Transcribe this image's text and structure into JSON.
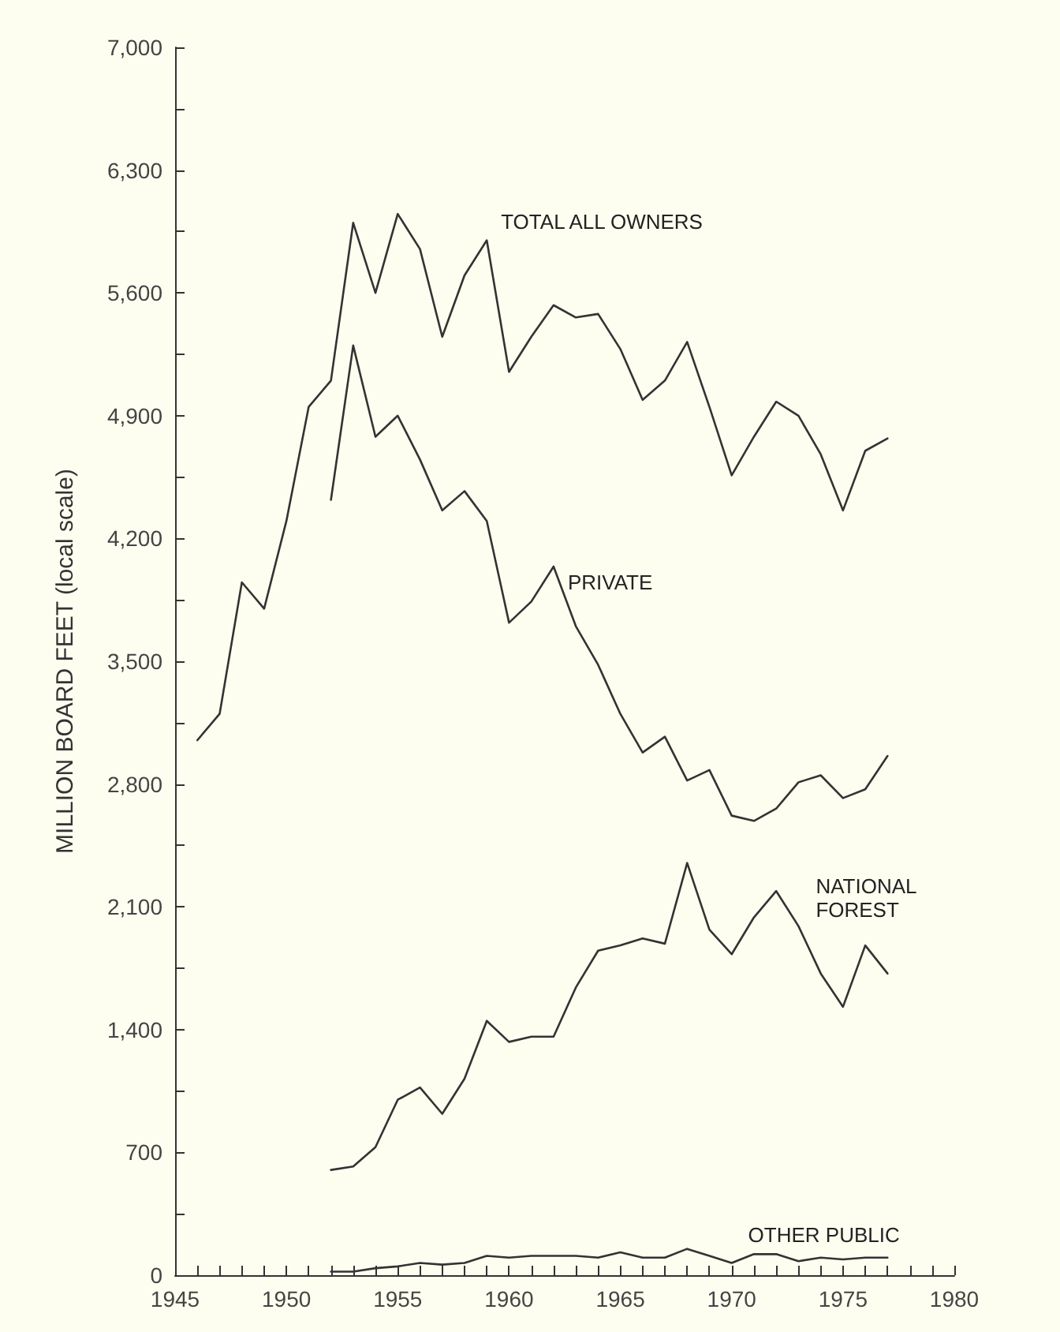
{
  "chart_data": {
    "type": "line",
    "ylabel": "MILLION BOARD FEET (local scale)",
    "xlim": [
      1945,
      1980
    ],
    "xticks": [
      {
        "value": 1945,
        "label": "1945"
      },
      {
        "value": 1946,
        "label": null
      },
      {
        "value": 1947,
        "label": null
      },
      {
        "value": 1948,
        "label": null
      },
      {
        "value": 1949,
        "label": null
      },
      {
        "value": 1950,
        "label": "1950"
      },
      {
        "value": 1951,
        "label": null
      },
      {
        "value": 1952,
        "label": null
      },
      {
        "value": 1953,
        "label": null
      },
      {
        "value": 1954,
        "label": null
      },
      {
        "value": 1955,
        "label": "1955"
      },
      {
        "value": 1956,
        "label": null
      },
      {
        "value": 1957,
        "label": null
      },
      {
        "value": 1958,
        "label": null
      },
      {
        "value": 1959,
        "label": null
      },
      {
        "value": 1960,
        "label": "1960"
      },
      {
        "value": 1961,
        "label": null
      },
      {
        "value": 1962,
        "label": null
      },
      {
        "value": 1963,
        "label": null
      },
      {
        "value": 1964,
        "label": null
      },
      {
        "value": 1965,
        "label": "1965"
      },
      {
        "value": 1966,
        "label": null
      },
      {
        "value": 1967,
        "label": null
      },
      {
        "value": 1968,
        "label": null
      },
      {
        "value": 1969,
        "label": null
      },
      {
        "value": 1970,
        "label": "1970"
      },
      {
        "value": 1971,
        "label": null
      },
      {
        "value": 1972,
        "label": null
      },
      {
        "value": 1973,
        "label": null
      },
      {
        "value": 1974,
        "label": null
      },
      {
        "value": 1975,
        "label": "1975"
      },
      {
        "value": 1976,
        "label": null
      },
      {
        "value": 1977,
        "label": null
      },
      {
        "value": 1978,
        "label": null
      },
      {
        "value": 1979,
        "label": null
      },
      {
        "value": 1980,
        "label": "1980"
      }
    ],
    "ylim": [
      0,
      7000
    ],
    "yticks": [
      0,
      {
        "value": 350,
        "label": null
      },
      {
        "value": 700,
        "label": "700"
      },
      {
        "value": 1050,
        "label": null
      },
      {
        "value": 1400,
        "label": "1,400"
      },
      {
        "value": 1750,
        "label": null
      },
      {
        "value": 2100,
        "label": "2,100"
      },
      {
        "value": 2450,
        "label": null
      },
      {
        "value": 2800,
        "label": "2,800"
      },
      {
        "value": 3150,
        "label": null
      },
      {
        "value": 3500,
        "label": "3,500"
      },
      {
        "value": 3850,
        "label": null
      },
      {
        "value": 4200,
        "label": "4,200"
      },
      {
        "value": 4550,
        "label": null
      },
      {
        "value": 4900,
        "label": "4,900"
      },
      {
        "value": 5250,
        "label": null
      },
      {
        "value": 5600,
        "label": "5,600"
      },
      {
        "value": 5950,
        "label": null
      },
      {
        "value": 6300,
        "label": "6,300"
      },
      {
        "value": 6650,
        "label": null
      },
      {
        "value": 7000,
        "label": "7,000"
      }
    ],
    "grid": false,
    "legend": false,
    "marker": "none",
    "line_style": "solid",
    "series": [
      {
        "name": "TOTAL ALL OWNERS",
        "color": "#333333",
        "x": [
          1946,
          1947,
          1948,
          1949,
          1950,
          1951,
          1952,
          1953,
          1954,
          1955,
          1956,
          1957,
          1958,
          1959,
          1960,
          1961,
          1962,
          1963,
          1964,
          1965,
          1966,
          1967,
          1968,
          1969,
          1970,
          1971,
          1972,
          1973,
          1974,
          1975,
          1976,
          1977
        ],
        "values": [
          3050,
          3200,
          3950,
          3800,
          4300,
          4950,
          5100,
          6000,
          5600,
          6050,
          5850,
          5350,
          5700,
          5900,
          5150,
          5350,
          5530,
          5460,
          5480,
          5280,
          4990,
          5100,
          5320,
          4950,
          4560,
          4780,
          4980,
          4900,
          4680,
          4360,
          4700,
          4770
        ]
      },
      {
        "name": "PRIVATE",
        "color": "#333333",
        "x": [
          1952,
          1953,
          1954,
          1955,
          1956,
          1957,
          1958,
          1959,
          1960,
          1961,
          1962,
          1963,
          1964,
          1965,
          1966,
          1967,
          1968,
          1969,
          1970,
          1971,
          1972,
          1973,
          1974,
          1975,
          1976,
          1977
        ],
        "values": [
          4420,
          5300,
          4780,
          4900,
          4650,
          4360,
          4470,
          4300,
          3720,
          3840,
          4040,
          3700,
          3480,
          3200,
          2980,
          3070,
          2820,
          2880,
          2620,
          2590,
          2660,
          2810,
          2850,
          2720,
          2770,
          2960
        ]
      },
      {
        "name": "NATIONAL FOREST",
        "color": "#333333",
        "x": [
          1952,
          1953,
          1954,
          1955,
          1956,
          1957,
          1958,
          1959,
          1960,
          1961,
          1962,
          1963,
          1964,
          1965,
          1966,
          1967,
          1968,
          1969,
          1970,
          1971,
          1972,
          1973,
          1974,
          1975,
          1976,
          1977
        ],
        "values": [
          600,
          620,
          730,
          1000,
          1070,
          920,
          1120,
          1450,
          1330,
          1360,
          1360,
          1640,
          1850,
          1880,
          1920,
          1890,
          2350,
          1970,
          1830,
          2040,
          2190,
          1990,
          1720,
          1530,
          1880,
          1720
        ]
      },
      {
        "name": "OTHER PUBLIC",
        "color": "#333333",
        "x": [
          1952,
          1953,
          1954,
          1955,
          1956,
          1957,
          1958,
          1959,
          1960,
          1961,
          1962,
          1963,
          1964,
          1965,
          1966,
          1967,
          1968,
          1969,
          1970,
          1971,
          1972,
          1973,
          1974,
          1975,
          1976,
          1977
        ],
        "values": [
          20,
          20,
          40,
          50,
          70,
          60,
          70,
          110,
          100,
          110,
          110,
          110,
          100,
          130,
          100,
          100,
          150,
          110,
          70,
          120,
          120,
          80,
          100,
          90,
          100,
          100
        ]
      }
    ]
  }
}
